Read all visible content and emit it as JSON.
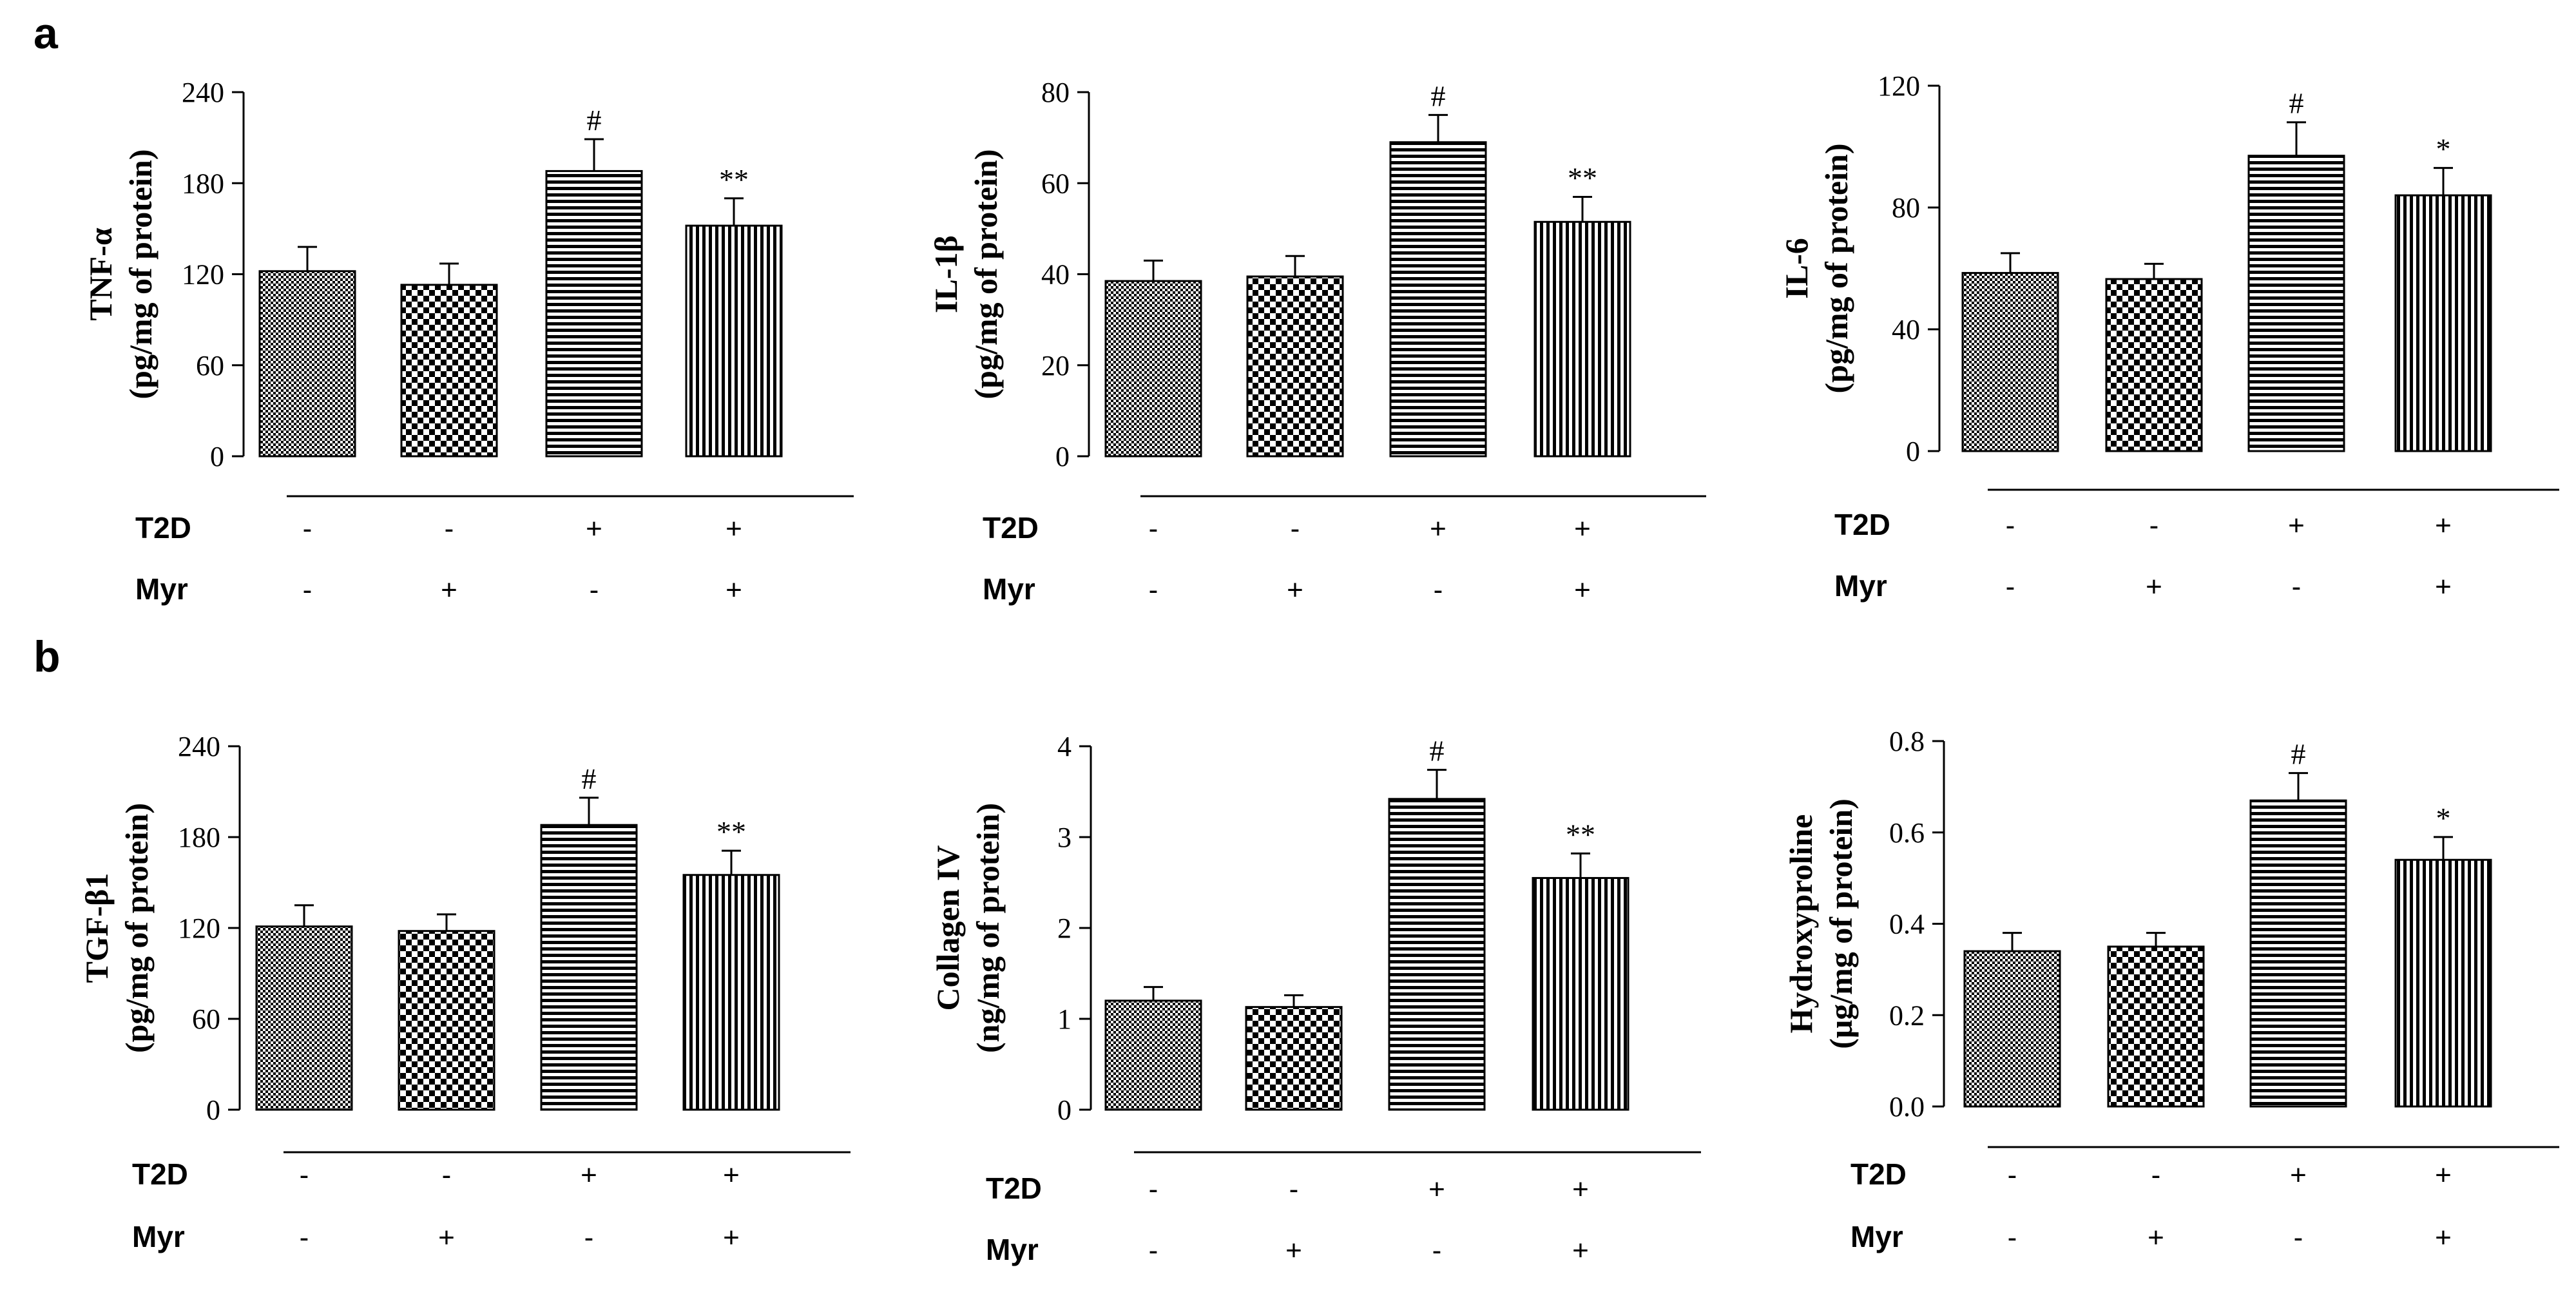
{
  "panel_labels": [
    "a",
    "b"
  ],
  "condition_rows": [
    "T2D",
    "Myr"
  ],
  "group_conditions": [
    [
      "-",
      "-",
      "+",
      "+"
    ],
    [
      "-",
      "+",
      "-",
      "+"
    ]
  ],
  "bar_patterns": [
    "fine-check",
    "coarse-check",
    "horizontal-stripes",
    "vertical-stripes"
  ],
  "chart_data": [
    {
      "type": "bar",
      "panel": "a",
      "ylabel_lines": [
        "TNF-α",
        "(pg/mg of protein)"
      ],
      "ylim": [
        0,
        240
      ],
      "yticks": [
        "0",
        "60",
        "120",
        "180",
        "240"
      ],
      "ytick_values": [
        0,
        60,
        120,
        180,
        240
      ],
      "values": [
        122,
        113,
        188,
        152
      ],
      "errors": [
        16,
        14,
        21,
        18
      ],
      "annotations": [
        "",
        "",
        "#",
        "**"
      ]
    },
    {
      "type": "bar",
      "panel": "a",
      "ylabel_lines": [
        "IL-1β",
        "(pg/mg of protein)"
      ],
      "ylim": [
        0,
        80
      ],
      "yticks": [
        "0",
        "20",
        "40",
        "60",
        "80"
      ],
      "ytick_values": [
        0,
        20,
        40,
        60,
        80
      ],
      "values": [
        38.5,
        39.5,
        69,
        51.5
      ],
      "errors": [
        4.5,
        4.5,
        6,
        5.5
      ],
      "annotations": [
        "",
        "",
        "#",
        "**"
      ]
    },
    {
      "type": "bar",
      "panel": "a",
      "ylabel_lines": [
        "IL-6",
        "(pg/mg of protein)"
      ],
      "ylim": [
        0,
        120
      ],
      "yticks": [
        "0",
        "40",
        "80",
        "120"
      ],
      "ytick_values": [
        0,
        40,
        80,
        120
      ],
      "values": [
        58.5,
        56.5,
        97,
        84
      ],
      "errors": [
        6.5,
        5,
        11,
        9
      ],
      "annotations": [
        "",
        "",
        "#",
        "*"
      ]
    },
    {
      "type": "bar",
      "panel": "b",
      "ylabel_lines": [
        "TGF-β1",
        "(pg/mg of protein)"
      ],
      "ylim": [
        0,
        240
      ],
      "yticks": [
        "0",
        "60",
        "120",
        "180",
        "240"
      ],
      "ytick_values": [
        0,
        60,
        120,
        180,
        240
      ],
      "values": [
        121,
        118,
        188,
        155
      ],
      "errors": [
        14,
        11,
        18,
        16
      ],
      "annotations": [
        "",
        "",
        "#",
        "**"
      ]
    },
    {
      "type": "bar",
      "panel": "b",
      "ylabel_lines": [
        "Collagen IV",
        "(ng/mg of protein)"
      ],
      "ylim": [
        0,
        4
      ],
      "yticks": [
        "0",
        "1",
        "2",
        "3",
        "4"
      ],
      "ytick_values": [
        0,
        1,
        2,
        3,
        4
      ],
      "values": [
        1.2,
        1.13,
        3.42,
        2.55
      ],
      "errors": [
        0.15,
        0.13,
        0.32,
        0.27
      ],
      "annotations": [
        "",
        "",
        "#",
        "**"
      ]
    },
    {
      "type": "bar",
      "panel": "b",
      "ylabel_lines": [
        "Hydroxyproline",
        "(μg/mg of protein)"
      ],
      "ylim": [
        0,
        0.8
      ],
      "yticks": [
        "0.0",
        "0.2",
        "0.4",
        "0.6",
        "0.8"
      ],
      "ytick_values": [
        0,
        0.2,
        0.4,
        0.6,
        0.8
      ],
      "values": [
        0.34,
        0.35,
        0.67,
        0.54
      ],
      "errors": [
        0.04,
        0.03,
        0.06,
        0.05
      ],
      "annotations": [
        "",
        "",
        "#",
        "*"
      ]
    }
  ]
}
